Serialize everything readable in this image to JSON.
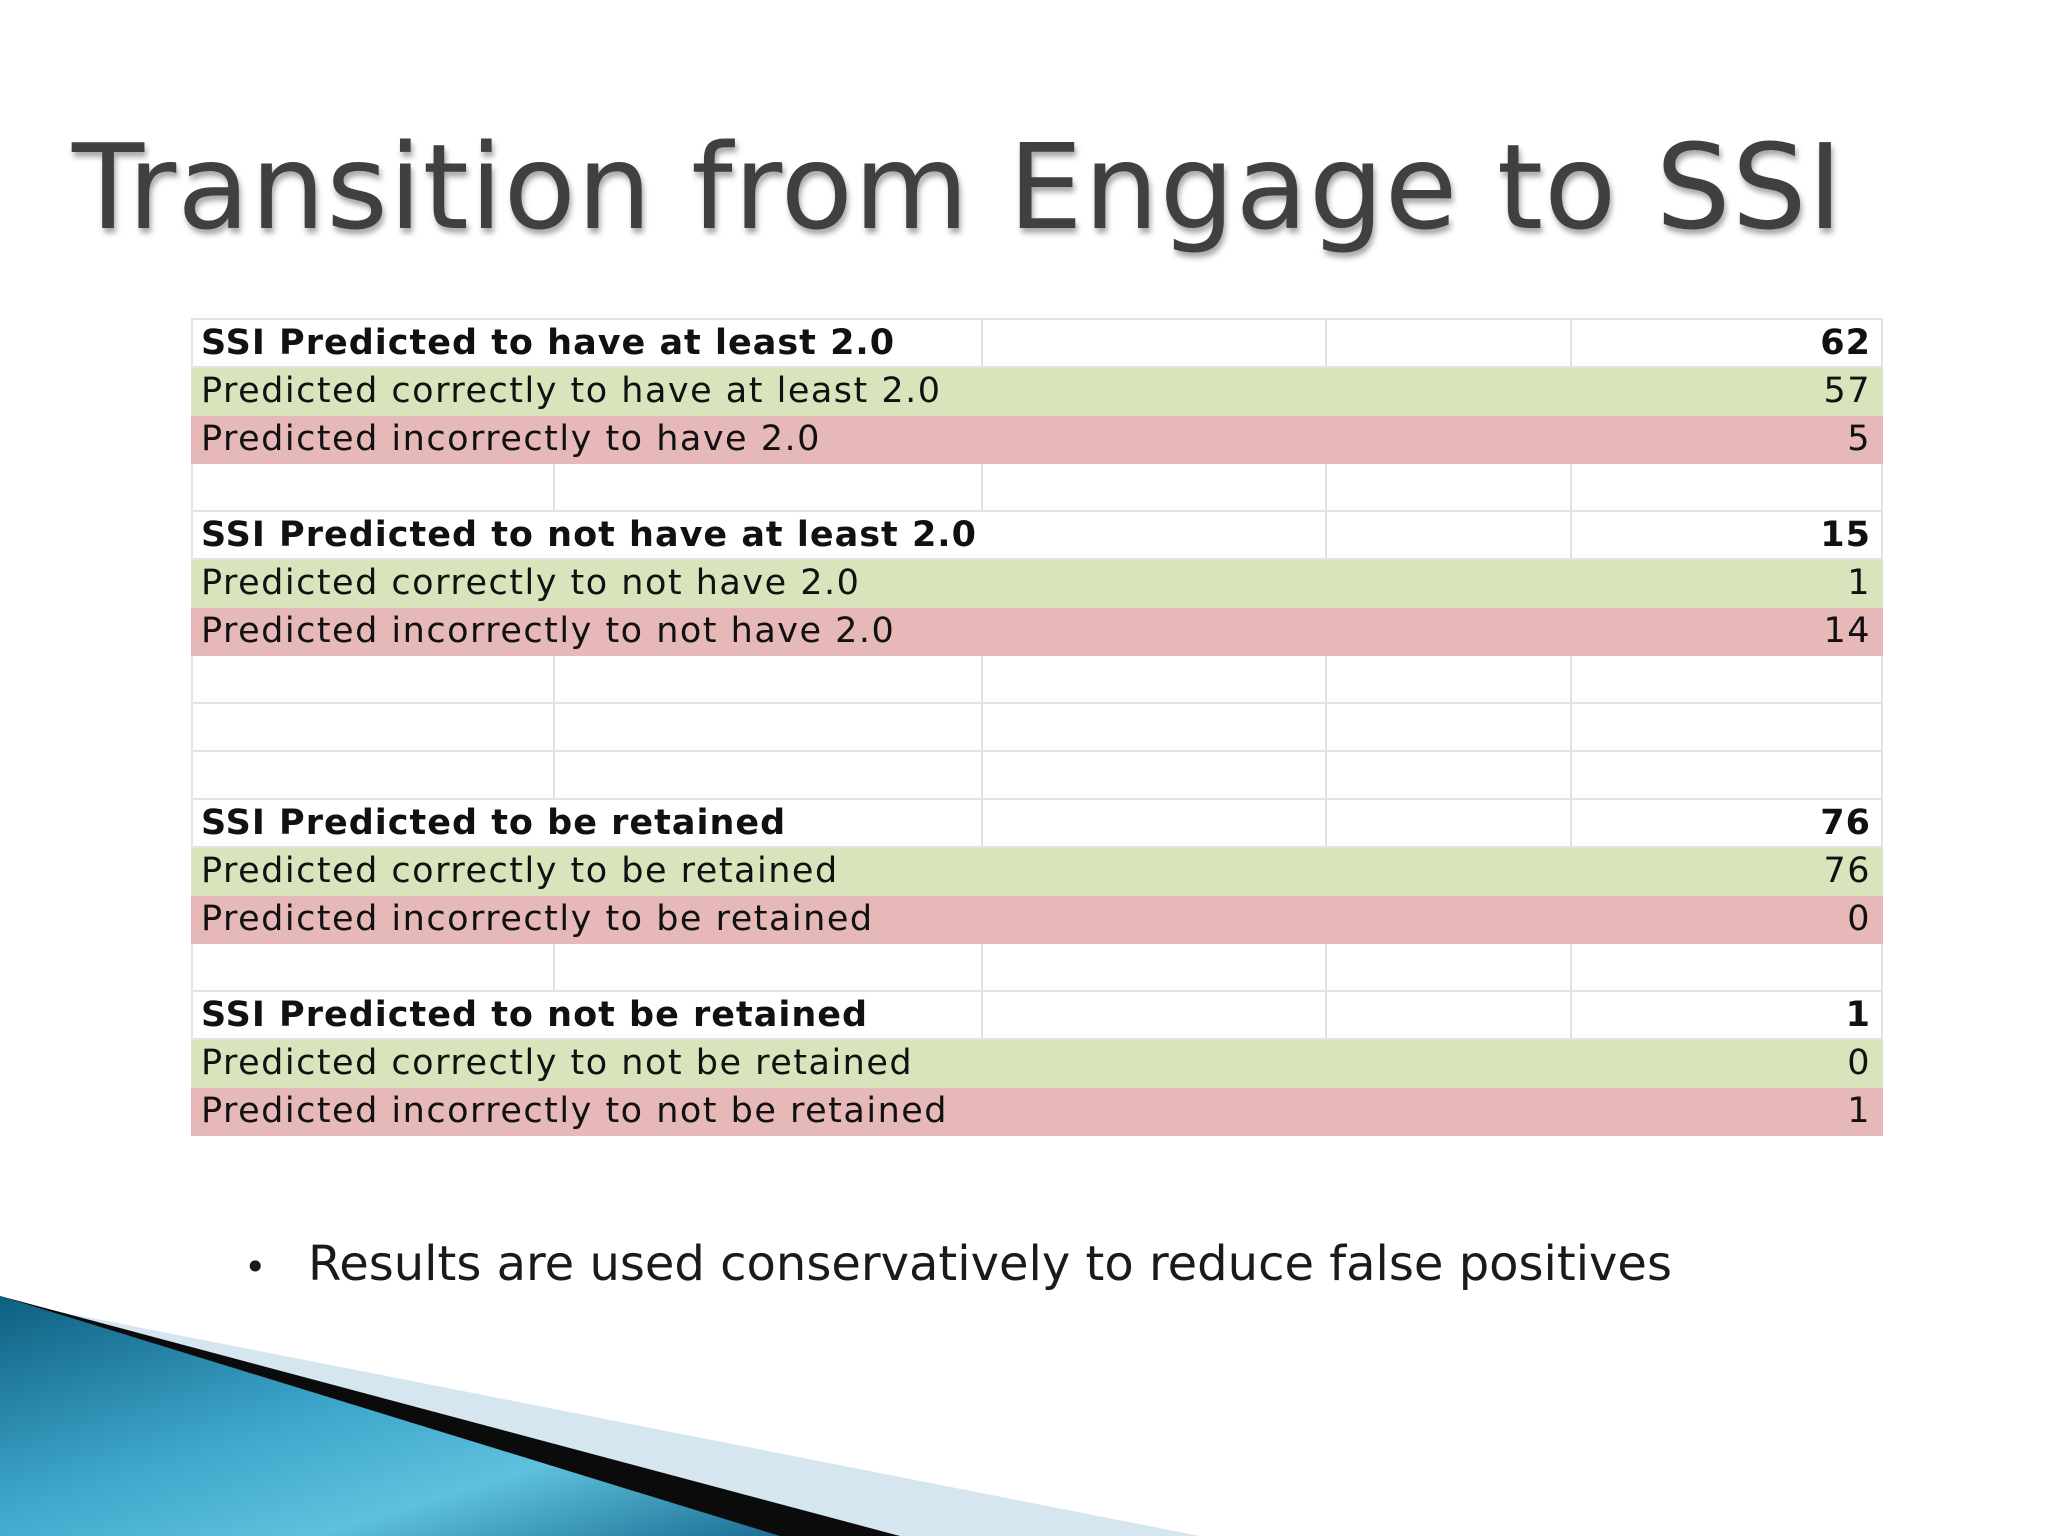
{
  "slide": {
    "title": "Transition from Engage to SSI",
    "bullet": "Results are used conservatively to reduce false positives"
  },
  "table": {
    "groups": [
      {
        "header": {
          "label": "SSI Predicted to have at least 2.0",
          "value": "62"
        },
        "correct": {
          "label": "Predicted correctly to have at least 2.0",
          "value": "57"
        },
        "incorrect": {
          "label": "Predicted incorrectly to have 2.0",
          "value": "5"
        }
      },
      {
        "header": {
          "label": "SSI Predicted to not have at least 2.0",
          "value": "15"
        },
        "correct": {
          "label": "Predicted correctly to not have 2.0",
          "value": "1"
        },
        "incorrect": {
          "label": "Predicted incorrectly to not have 2.0",
          "value": "14"
        }
      },
      {
        "header": {
          "label": "SSI Predicted to be retained",
          "value": "76"
        },
        "correct": {
          "label": "Predicted correctly to be retained",
          "value": "76"
        },
        "incorrect": {
          "label": "Predicted incorrectly to be retained",
          "value": "0"
        }
      },
      {
        "header": {
          "label": "SSI Predicted to not be retained",
          "value": "1"
        },
        "correct": {
          "label": "Predicted correctly to not be retained",
          "value": "0"
        },
        "incorrect": {
          "label": "Predicted incorrectly to not be retained",
          "value": "1"
        }
      }
    ]
  },
  "colors": {
    "correct_fill": "#d8e4bc",
    "incorrect_fill": "#e6b8b7",
    "title_text": "#404040",
    "accent_blue": "#2a86a8"
  }
}
